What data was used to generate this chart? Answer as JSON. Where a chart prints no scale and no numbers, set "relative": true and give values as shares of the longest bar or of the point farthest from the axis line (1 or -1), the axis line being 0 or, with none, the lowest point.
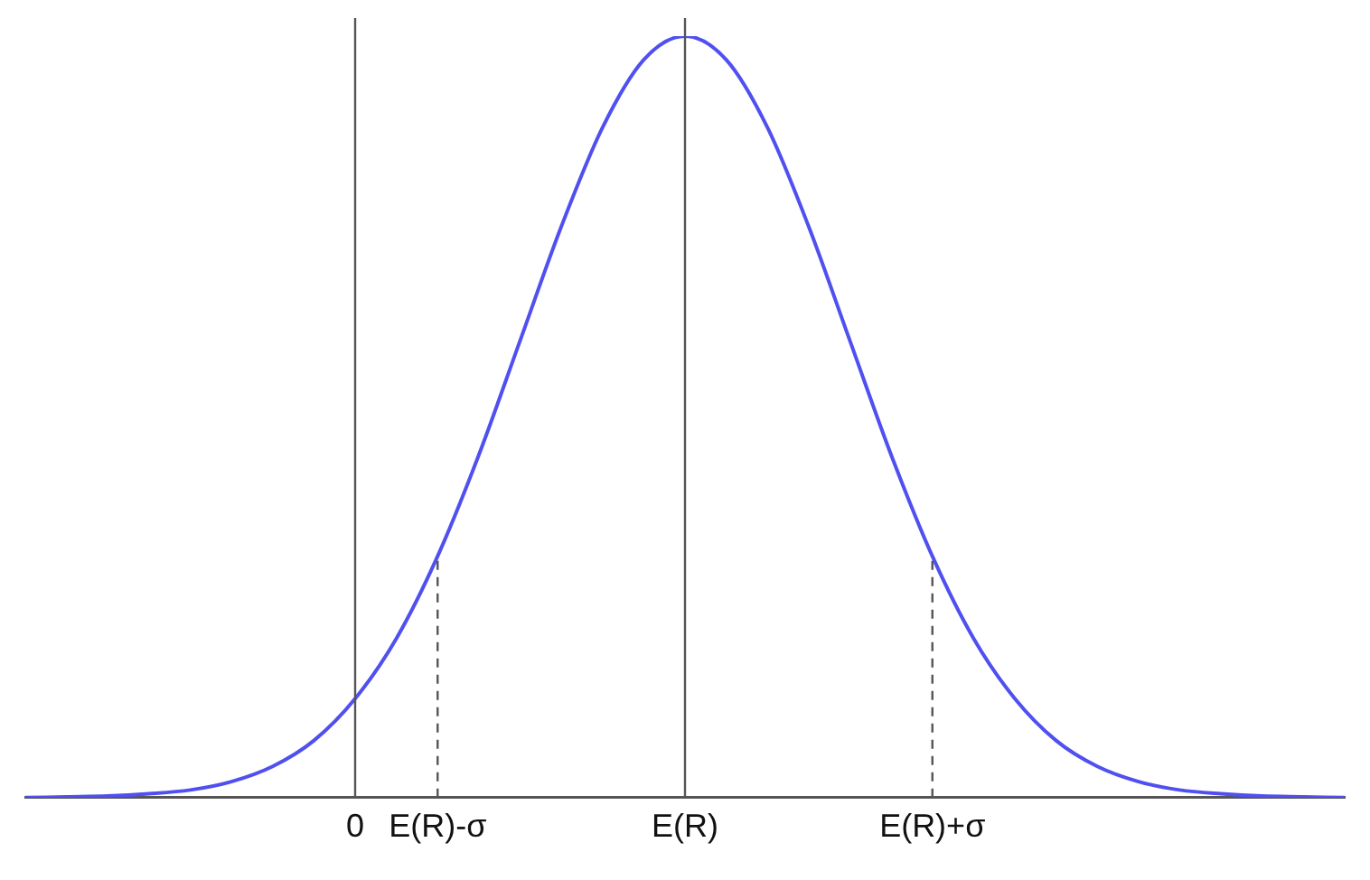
{
  "chart_data": {
    "type": "line",
    "relative": true,
    "categories": [
      null,
      null,
      null,
      null,
      null,
      null,
      null,
      null,
      "0",
      null,
      "E(R)-σ",
      null,
      null,
      null,
      null,
      null,
      "E(R)",
      null,
      null,
      null,
      null,
      null,
      "E(R)+σ",
      null,
      null,
      null,
      null,
      null,
      null,
      null,
      null,
      null,
      null
    ],
    "series": [
      {
        "color": "#5050f0",
        "values": [
          0.0,
          0.001,
          0.002,
          0.005,
          0.01,
          0.021,
          0.041,
          0.075,
          0.13,
          0.209,
          0.317,
          0.45,
          0.6,
          0.75,
          0.88,
          0.969,
          1,
          0.969,
          0.88,
          0.75,
          0.6,
          0.45,
          0.317,
          0.209,
          0.13,
          0.075,
          0.041,
          0.021,
          0.01,
          0.005,
          0.002,
          0.001,
          0.0
        ]
      }
    ],
    "ref_lines": [
      {
        "axis": "x",
        "value": "0",
        "color": "#555555",
        "line_style": "solid"
      },
      {
        "axis": "x",
        "value": "E(R)",
        "color": "#555555",
        "line_style": "solid"
      },
      {
        "axis": "x",
        "value": "E(R)-σ",
        "color": "#555555",
        "line_style": "dashed"
      },
      {
        "axis": "x",
        "value": "E(R)+σ",
        "color": "#555555",
        "line_style": "dashed"
      }
    ],
    "grid": false,
    "legend": false,
    "marker": "none",
    "line_style": "solid"
  }
}
